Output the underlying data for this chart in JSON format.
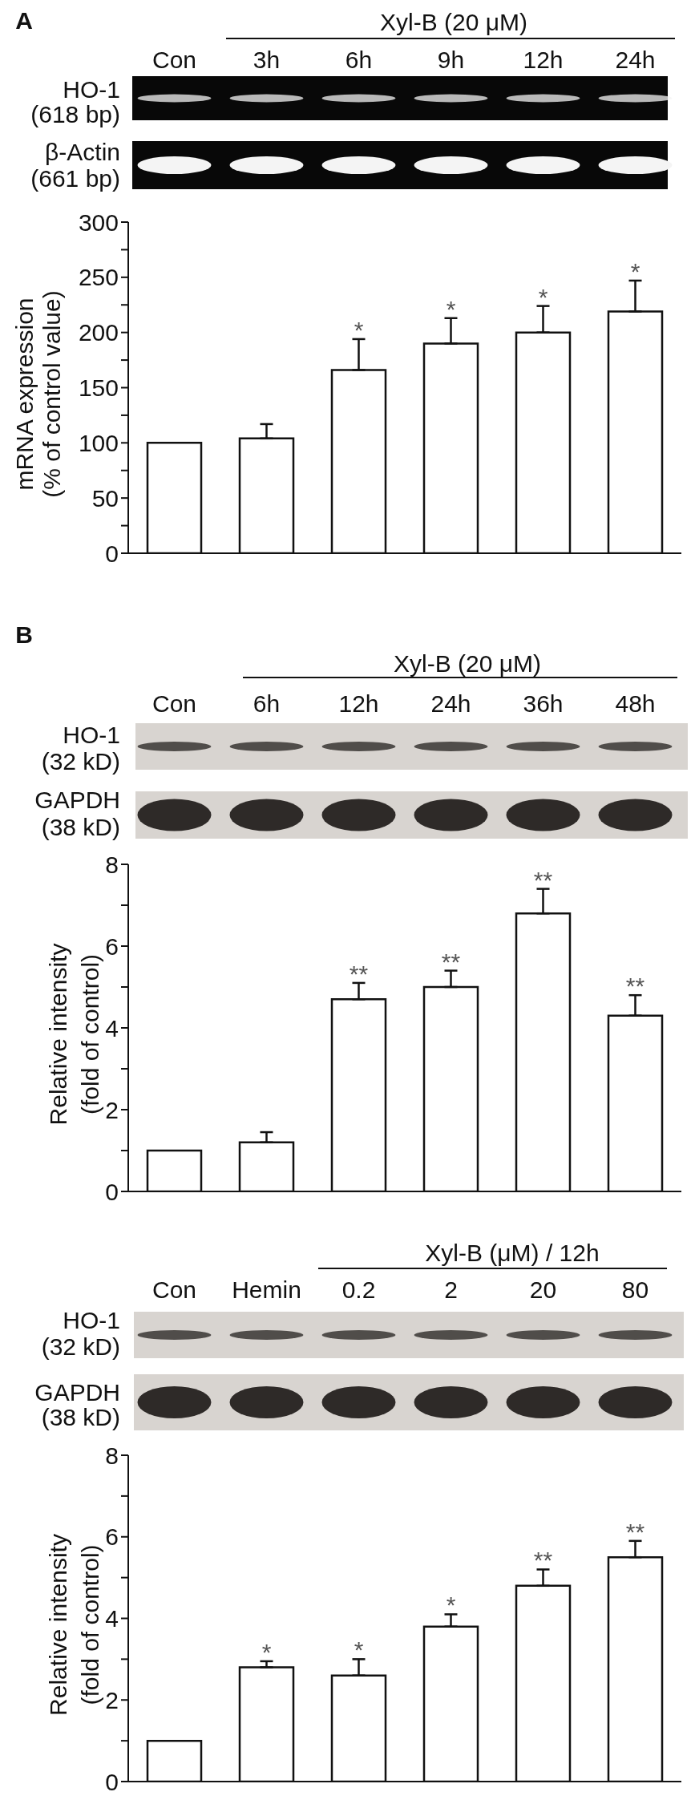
{
  "chart_data": [
    {
      "type": "bar",
      "title": "A",
      "categories": [
        "Con",
        "3h",
        "6h",
        "9h",
        "12h",
        "24h"
      ],
      "values": [
        100,
        104,
        166,
        190,
        200,
        219
      ],
      "color": "#ffffff",
      "errors": [
        null,
        [
          104,
          117
        ],
        [
          166,
          194
        ],
        [
          190,
          213
        ],
        [
          200,
          224
        ],
        [
          219,
          247
        ]
      ],
      "ylabel": "mRNA expression\n(% of control value)",
      "ylim": [
        0,
        300
      ],
      "yticks": [
        0,
        {
          "value": 25,
          "label": null
        },
        50,
        {
          "value": 75,
          "label": null
        },
        100,
        {
          "value": 125,
          "label": null
        },
        150,
        {
          "value": 175,
          "label": null
        },
        200,
        {
          "value": 225,
          "label": null
        },
        250,
        {
          "value": 275,
          "label": null
        },
        300
      ],
      "annotations": [
        "Xyl-B (20 μM)",
        "HO-1\n(618 bp)",
        "β-Actin\n(661 bp)",
        "*",
        "*",
        "*",
        "*"
      ]
    },
    {
      "type": "bar",
      "title": "B",
      "categories": [
        "Con",
        "6h",
        "12h",
        "24h",
        "36h",
        "48h"
      ],
      "values": [
        1,
        1.2,
        4.7,
        5.0,
        6.8,
        4.3
      ],
      "color": "#ffffff",
      "errors": [
        null,
        [
          1.2,
          1.45
        ],
        [
          4.7,
          5.1
        ],
        [
          5.0,
          5.4
        ],
        [
          6.8,
          7.4
        ],
        [
          4.3,
          4.8
        ]
      ],
      "ylabel": "Relative intensity\n(fold of control)",
      "ylim": [
        0,
        8
      ],
      "yticks": [
        0,
        {
          "value": 1,
          "label": null
        },
        2,
        {
          "value": 3,
          "label": null
        },
        4,
        {
          "value": 5,
          "label": null
        },
        6,
        {
          "value": 7,
          "label": null
        },
        8
      ],
      "annotations": [
        "Xyl-B (20 μM)",
        "HO-1\n(32 kD)",
        "GAPDH\n(38 kD)",
        "**",
        "**",
        "**",
        "**"
      ]
    },
    {
      "type": "bar",
      "categories": [
        "Con",
        "Hemin",
        "0.2",
        "2",
        "20",
        "80"
      ],
      "values": [
        1,
        2.8,
        2.6,
        3.8,
        4.8,
        5.5
      ],
      "color": "#ffffff",
      "errors": [
        null,
        [
          2.8,
          2.95
        ],
        [
          2.6,
          3.0
        ],
        [
          3.8,
          4.1
        ],
        [
          4.8,
          5.2
        ],
        [
          5.5,
          5.9
        ]
      ],
      "ylabel": "Relative intensity\n(fold of control)",
      "ylim": [
        0,
        8
      ],
      "yticks": [
        0,
        {
          "value": 1,
          "label": null
        },
        2,
        {
          "value": 3,
          "label": null
        },
        4,
        {
          "value": 5,
          "label": null
        },
        6,
        {
          "value": 7,
          "label": null
        },
        8
      ],
      "annotations": [
        "Xyl-B (μM) / 12h",
        "HO-1\n(32 kD)",
        "GAPDH\n(38 kD)",
        "*",
        "*",
        "*",
        "**",
        "**"
      ]
    }
  ]
}
